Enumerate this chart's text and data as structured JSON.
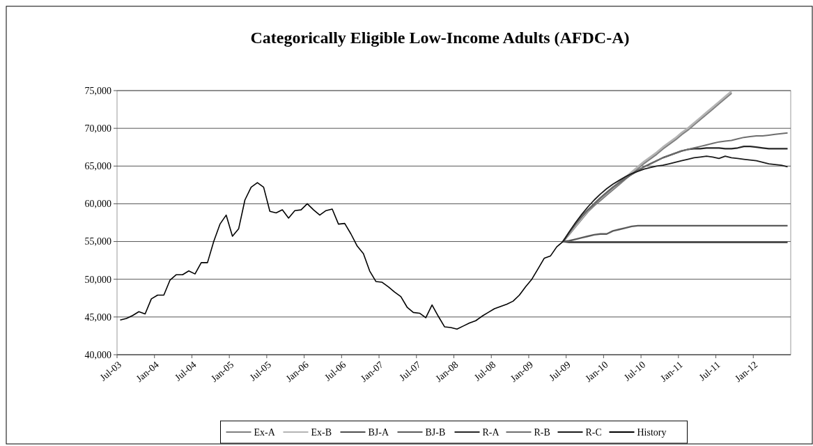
{
  "chart_data": {
    "type": "line",
    "title": "Categorically Eligible Low-Income Adults (AFDC-A)",
    "categories": [
      "Jul-03",
      null,
      null,
      null,
      null,
      null,
      "Jan-04",
      null,
      null,
      null,
      null,
      null,
      "Jul-04",
      null,
      null,
      null,
      null,
      null,
      "Jan-05",
      null,
      null,
      null,
      null,
      null,
      "Jul-05",
      null,
      null,
      null,
      null,
      null,
      "Jan-06",
      null,
      null,
      null,
      null,
      null,
      "Jul-06",
      null,
      null,
      null,
      null,
      null,
      "Jan-07",
      null,
      null,
      null,
      null,
      null,
      "Jul-07",
      null,
      null,
      null,
      null,
      null,
      "Jan-08",
      null,
      null,
      null,
      null,
      null,
      "Jul-08",
      null,
      null,
      null,
      null,
      null,
      "Jan-09",
      null,
      null,
      null,
      null,
      null,
      "Jul-09",
      null,
      null,
      null,
      null,
      null,
      "Jan-10",
      null,
      null,
      null,
      null,
      null,
      "Jul-10",
      null,
      null,
      null,
      null,
      null,
      "Jan-11",
      null,
      null,
      null,
      null,
      null,
      "Jul-11",
      null,
      null,
      null,
      null,
      null,
      "Jan-12",
      null,
      null,
      null,
      null,
      null
    ],
    "ylim": [
      40000,
      75000
    ],
    "yticks": [
      {
        "value": 40000,
        "label": "40,000"
      },
      {
        "value": 45000,
        "label": "45,000"
      },
      {
        "value": 50000,
        "label": "50,000"
      },
      {
        "value": 55000,
        "label": "55,000"
      },
      {
        "value": 60000,
        "label": "60,000"
      },
      {
        "value": 65000,
        "label": "65,000"
      },
      {
        "value": 70000,
        "label": "70,000"
      },
      {
        "value": 75000,
        "label": "75,000"
      }
    ],
    "grid": "y",
    "legend": "bottom",
    "series": [
      {
        "name": "Ex-A",
        "color": "#7f7f7f",
        "values": [
          null,
          null,
          null,
          null,
          null,
          null,
          null,
          null,
          null,
          null,
          null,
          null,
          null,
          null,
          null,
          null,
          null,
          null,
          null,
          null,
          null,
          null,
          null,
          null,
          null,
          null,
          null,
          null,
          null,
          null,
          null,
          null,
          null,
          null,
          null,
          null,
          null,
          null,
          null,
          null,
          null,
          null,
          null,
          null,
          null,
          null,
          null,
          null,
          null,
          null,
          null,
          null,
          null,
          null,
          null,
          null,
          null,
          null,
          null,
          null,
          null,
          null,
          null,
          null,
          null,
          null,
          null,
          null,
          null,
          null,
          null,
          55000,
          56000,
          57000,
          58000,
          59000,
          59800,
          60500,
          61200,
          61900,
          62600,
          63300,
          64000,
          64700,
          65400,
          66000,
          66600,
          67300,
          67900,
          68500,
          69200,
          69800,
          70500,
          71200,
          71900,
          72600,
          73300,
          74000,
          74700,
          null,
          null,
          null,
          null,
          null,
          null,
          null,
          null,
          null
        ]
      },
      {
        "name": "Ex-B",
        "color": "#b4b4b4",
        "values": [
          null,
          null,
          null,
          null,
          null,
          null,
          null,
          null,
          null,
          null,
          null,
          null,
          null,
          null,
          null,
          null,
          null,
          null,
          null,
          null,
          null,
          null,
          null,
          null,
          null,
          null,
          null,
          null,
          null,
          null,
          null,
          null,
          null,
          null,
          null,
          null,
          null,
          null,
          null,
          null,
          null,
          null,
          null,
          null,
          null,
          null,
          null,
          null,
          null,
          null,
          null,
          null,
          null,
          null,
          null,
          null,
          null,
          null,
          null,
          null,
          null,
          null,
          null,
          null,
          null,
          null,
          null,
          null,
          null,
          null,
          null,
          55000,
          56100,
          57100,
          58100,
          59100,
          60000,
          60700,
          61400,
          62100,
          62800,
          63500,
          64200,
          64900,
          65600,
          66200,
          66800,
          67500,
          68100,
          68700,
          69400,
          70000,
          70700,
          71400,
          72100,
          72800,
          73500,
          74200,
          74900,
          null,
          null,
          null,
          null,
          null,
          null,
          null,
          null,
          null
        ]
      },
      {
        "name": "BJ-A",
        "color": "#4d4d4d",
        "values": [
          null,
          null,
          null,
          null,
          null,
          null,
          null,
          null,
          null,
          null,
          null,
          null,
          null,
          null,
          null,
          null,
          null,
          null,
          null,
          null,
          null,
          null,
          null,
          null,
          null,
          null,
          null,
          null,
          null,
          null,
          null,
          null,
          null,
          null,
          null,
          null,
          null,
          null,
          null,
          null,
          null,
          null,
          null,
          null,
          null,
          null,
          null,
          null,
          null,
          null,
          null,
          null,
          null,
          null,
          null,
          null,
          null,
          null,
          null,
          null,
          null,
          null,
          null,
          null,
          null,
          null,
          null,
          null,
          null,
          null,
          null,
          55000,
          54900,
          54900,
          54900,
          54900,
          54900,
          54900,
          54900,
          54900,
          54900,
          54900,
          54900,
          54900,
          54900,
          54900,
          54900,
          54900,
          54900,
          54900,
          54900,
          54900,
          54900,
          54900,
          54900,
          54900,
          54900,
          54900,
          54900,
          54900,
          54900,
          54900,
          54900,
          54900,
          54900,
          54900,
          54900,
          54900
        ]
      },
      {
        "name": "BJ-B",
        "color": "#5a5a5a",
        "values": [
          null,
          null,
          null,
          null,
          null,
          null,
          null,
          null,
          null,
          null,
          null,
          null,
          null,
          null,
          null,
          null,
          null,
          null,
          null,
          null,
          null,
          null,
          null,
          null,
          null,
          null,
          null,
          null,
          null,
          null,
          null,
          null,
          null,
          null,
          null,
          null,
          null,
          null,
          null,
          null,
          null,
          null,
          null,
          null,
          null,
          null,
          null,
          null,
          null,
          null,
          null,
          null,
          null,
          null,
          null,
          null,
          null,
          null,
          null,
          null,
          null,
          null,
          null,
          null,
          null,
          null,
          null,
          null,
          null,
          null,
          null,
          55000,
          55100,
          55300,
          55500,
          55700,
          55900,
          56000,
          56000,
          56400,
          56600,
          56800,
          57000,
          57100,
          57100,
          57100,
          57100,
          57100,
          57100,
          57100,
          57100,
          57100,
          57100,
          57100,
          57100,
          57100,
          57100,
          57100,
          57100,
          57100,
          57100,
          57100,
          57100,
          57100,
          57100,
          57100,
          57100,
          57100
        ]
      },
      {
        "name": "R-A",
        "color": "#262626",
        "values": [
          null,
          null,
          null,
          null,
          null,
          null,
          null,
          null,
          null,
          null,
          null,
          null,
          null,
          null,
          null,
          null,
          null,
          null,
          null,
          null,
          null,
          null,
          null,
          null,
          null,
          null,
          null,
          null,
          null,
          null,
          null,
          null,
          null,
          null,
          null,
          null,
          null,
          null,
          null,
          null,
          null,
          null,
          null,
          null,
          null,
          null,
          null,
          null,
          null,
          null,
          null,
          null,
          null,
          null,
          null,
          null,
          null,
          null,
          null,
          null,
          null,
          null,
          null,
          null,
          null,
          null,
          null,
          null,
          null,
          null,
          null,
          55000,
          56200,
          57300,
          58300,
          59200,
          60000,
          60800,
          61500,
          62200,
          62800,
          63400,
          63900,
          64400,
          64900,
          65300,
          65700,
          66100,
          66400,
          66700,
          67000,
          67200,
          67300,
          67300,
          67400,
          67400,
          67400,
          67300,
          67300,
          67400,
          67600,
          67600,
          67500,
          67400,
          67300,
          67300,
          67300,
          67300
        ]
      },
      {
        "name": "R-B",
        "color": "#6e6e6e",
        "values": [
          null,
          null,
          null,
          null,
          null,
          null,
          null,
          null,
          null,
          null,
          null,
          null,
          null,
          null,
          null,
          null,
          null,
          null,
          null,
          null,
          null,
          null,
          null,
          null,
          null,
          null,
          null,
          null,
          null,
          null,
          null,
          null,
          null,
          null,
          null,
          null,
          null,
          null,
          null,
          null,
          null,
          null,
          null,
          null,
          null,
          null,
          null,
          null,
          null,
          null,
          null,
          null,
          null,
          null,
          null,
          null,
          null,
          null,
          null,
          null,
          null,
          null,
          null,
          null,
          null,
          null,
          null,
          null,
          null,
          null,
          null,
          55000,
          56200,
          57300,
          58300,
          59200,
          60000,
          60800,
          61500,
          62200,
          62800,
          63400,
          63900,
          64400,
          64900,
          65300,
          65700,
          66100,
          66400,
          66700,
          67000,
          67200,
          67400,
          67600,
          67800,
          68000,
          68200,
          68300,
          68400,
          68600,
          68800,
          68900,
          69000,
          69000,
          69100,
          69200,
          69300,
          69400
        ]
      },
      {
        "name": "R-C",
        "color": "#1a1a1a",
        "values": [
          null,
          null,
          null,
          null,
          null,
          null,
          null,
          null,
          null,
          null,
          null,
          null,
          null,
          null,
          null,
          null,
          null,
          null,
          null,
          null,
          null,
          null,
          null,
          null,
          null,
          null,
          null,
          null,
          null,
          null,
          null,
          null,
          null,
          null,
          null,
          null,
          null,
          null,
          null,
          null,
          null,
          null,
          null,
          null,
          null,
          null,
          null,
          null,
          null,
          null,
          null,
          null,
          null,
          null,
          null,
          null,
          null,
          null,
          null,
          null,
          null,
          null,
          null,
          null,
          null,
          null,
          null,
          null,
          null,
          null,
          null,
          55000,
          56300,
          57500,
          58600,
          59600,
          60500,
          61300,
          62000,
          62600,
          63100,
          63600,
          64000,
          64300,
          64600,
          64800,
          65000,
          65100,
          65300,
          65500,
          65700,
          65900,
          66100,
          66200,
          66300,
          66200,
          66000,
          66300,
          66100,
          66000,
          65900,
          65800,
          65700,
          65500,
          65300,
          65200,
          65100,
          64900
        ]
      },
      {
        "name": "History",
        "color": "#000000",
        "values": [
          44600,
          44800,
          45200,
          45700,
          45400,
          47400,
          47900,
          47900,
          49900,
          50600,
          50600,
          51100,
          50700,
          52200,
          52200,
          55000,
          57300,
          58500,
          55700,
          56700,
          60500,
          62200,
          62800,
          62200,
          59000,
          58800,
          59200,
          58100,
          59100,
          59200,
          60000,
          59200,
          58500,
          59100,
          59300,
          57300,
          57400,
          56000,
          54400,
          53400,
          51100,
          49700,
          49600,
          49000,
          48300,
          47700,
          46300,
          45600,
          45500,
          44900,
          46600,
          45100,
          43700,
          43600,
          43400,
          43800,
          44200,
          44500,
          45100,
          45600,
          46100,
          46400,
          46700,
          47100,
          47900,
          49000,
          50000,
          51400,
          52800,
          53100,
          54300,
          55000,
          null,
          null,
          null,
          null,
          null,
          null,
          null,
          null,
          null,
          null,
          null,
          null,
          null,
          null,
          null,
          null,
          null,
          null,
          null,
          null,
          null,
          null,
          null,
          null,
          null,
          null,
          null,
          null,
          null,
          null,
          null,
          null,
          null,
          null,
          null,
          null
        ]
      }
    ]
  }
}
